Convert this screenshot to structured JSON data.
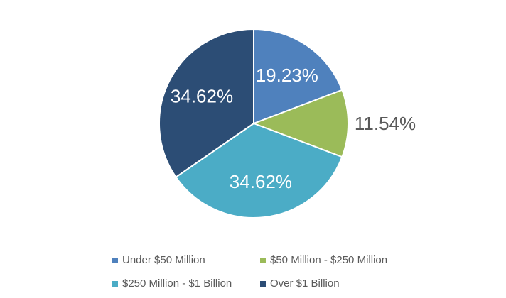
{
  "chart_data": {
    "type": "pie",
    "categories": [
      "Under $50 Million",
      "$50 Million - $250 Million",
      "$250 Million - $1 Billion",
      "Over $1 Billion"
    ],
    "values": [
      19.23,
      11.54,
      34.62,
      34.62
    ],
    "labels": [
      "19.23%",
      "11.54%",
      "34.62%",
      "34.62%"
    ],
    "colors": [
      "#4f81bd",
      "#9bbb59",
      "#4bacc6",
      "#2c4d75"
    ],
    "label_colors": [
      "#ffffff",
      "#595959",
      "#ffffff",
      "#ffffff"
    ],
    "legend_position": "bottom"
  }
}
